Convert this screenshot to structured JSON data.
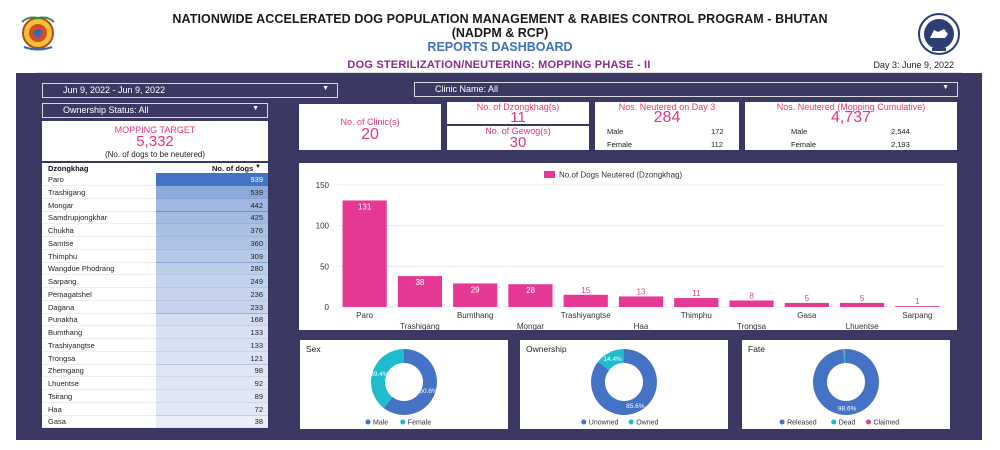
{
  "header": {
    "line1": "NATIONWIDE ACCELERATED DOG POPULATION MANAGEMENT & RABIES CONTROL PROGRAM - BHUTAN",
    "line2": "(NADPM & RCP)",
    "line3": "REPORTS DASHBOARD",
    "subtitle": "DOG STERILIZATION/NEUTERING: MOPPING PHASE - II",
    "day": "Day 3: June 9, 2022"
  },
  "filters": {
    "date_range": "Jun 9, 2022 - Jun 9, 2022",
    "clinic": "Clinic Name: All",
    "ownership": "Ownership Status: All"
  },
  "target": {
    "label": "MOPPING TARGET",
    "value": "5,332",
    "note": "(No. of dogs to be neutered)"
  },
  "kpis": {
    "clinics_label": "No. of Clinic(s)",
    "clinics_value": "20",
    "dzongkhag_label": "No. of Dzongkhag(s)",
    "dzongkhag_value": "11",
    "gewog_label": "No. of Gewog(s)",
    "gewog_value": "30",
    "day3_label": "Nos. Neutered on Day 3",
    "day3_value": "284",
    "day3_male_label": "Male",
    "day3_male": "172",
    "day3_female_label": "Female",
    "day3_female": "112",
    "cum_label": "Nos. Neutered (Mopping Cumulative)",
    "cum_value": "4,737",
    "cum_male_label": "Male",
    "cum_male": "2,544",
    "cum_female_label": "Female",
    "cum_female": "2,193"
  },
  "table": {
    "col1": "Dzongkhag",
    "col2": "No. of dogs",
    "sort_icon": "sort-down-icon",
    "rows": [
      {
        "name": "Paro",
        "value": "939"
      },
      {
        "name": "Trashigang",
        "value": "539"
      },
      {
        "name": "Mongar",
        "value": "442"
      },
      {
        "name": "Samdrupjongkhar",
        "value": "425"
      },
      {
        "name": "Chukha",
        "value": "376"
      },
      {
        "name": "Samtse",
        "value": "360"
      },
      {
        "name": "Thimphu",
        "value": "309"
      },
      {
        "name": "Wangdue Phodrang",
        "value": "280"
      },
      {
        "name": "Sarpang",
        "value": "249"
      },
      {
        "name": "Pemagatshel",
        "value": "236"
      },
      {
        "name": "Dagana",
        "value": "233"
      },
      {
        "name": "Punakha",
        "value": "168"
      },
      {
        "name": "Bumthang",
        "value": "133"
      },
      {
        "name": "Trashiyangtse",
        "value": "133"
      },
      {
        "name": "Trongsa",
        "value": "121"
      },
      {
        "name": "Zhemgang",
        "value": "98"
      },
      {
        "name": "Lhuentse",
        "value": "92"
      },
      {
        "name": "Tsirang",
        "value": "89"
      },
      {
        "name": "Haa",
        "value": "72"
      },
      {
        "name": "Gasa",
        "value": "38"
      }
    ]
  },
  "chart_data": [
    {
      "type": "bar",
      "legend": "No.of Dogs Neutered (Dzongkhag)",
      "categories": [
        "Paro",
        "Trashigang",
        "Bumthang",
        "Mongar",
        "Trashiyangtse",
        "Haa",
        "Thimphu",
        "Trongsa",
        "Gasa",
        "Lhuentse",
        "Sarpang"
      ],
      "values": [
        131,
        38,
        29,
        28,
        15,
        13,
        11,
        8,
        5,
        5,
        1
      ],
      "yticks": [
        0,
        50,
        100,
        150
      ],
      "ylim": [
        0,
        150
      ],
      "color": "#e63995"
    },
    {
      "type": "pie",
      "title": "Sex",
      "labels": [
        "Male",
        "Female"
      ],
      "values": [
        60.6,
        39.4
      ],
      "display": [
        "60.6%",
        "39.4%"
      ],
      "colors": [
        "#4472c4",
        "#1fbcd0"
      ]
    },
    {
      "type": "pie",
      "title": "Ownership",
      "labels": [
        "Unowned",
        "Owned"
      ],
      "values": [
        85.6,
        14.4
      ],
      "display": [
        "85.6%",
        "14.4%"
      ],
      "colors": [
        "#4472c4",
        "#1fbcd0"
      ]
    },
    {
      "type": "pie",
      "title": "Fate",
      "labels": [
        "Released",
        "Dead",
        "Claimed"
      ],
      "values": [
        98.6,
        0.7,
        0.7
      ],
      "display": [
        "98.6%",
        "",
        ""
      ],
      "colors": [
        "#4472c4",
        "#1fbcd0",
        "#e63995"
      ]
    }
  ],
  "colors": {
    "panel": "#3c3864",
    "accent": "#e4357f",
    "table_bar": "#4472c4"
  }
}
